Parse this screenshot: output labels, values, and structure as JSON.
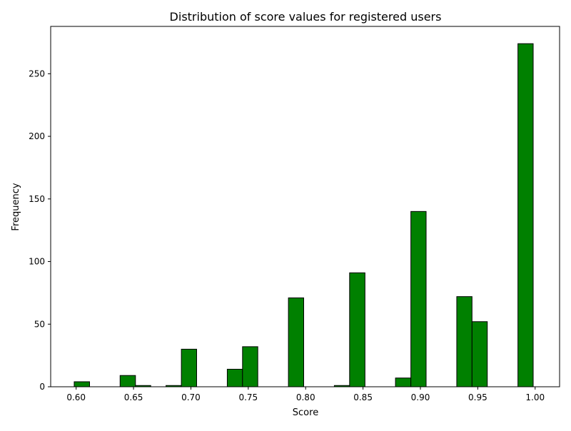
{
  "chart_data": {
    "type": "bar",
    "title": "Distribution of score values for registered users",
    "xlabel": "Score",
    "ylabel": "Frequency",
    "xlim": [
      0.5778,
      1.0213
    ],
    "ylim": [
      0,
      287.8
    ],
    "xticks": [
      0.6,
      0.65,
      0.7,
      0.75,
      0.8,
      0.85,
      0.9,
      0.95,
      1.0
    ],
    "xtick_labels": [
      "0.60",
      "0.65",
      "0.70",
      "0.75",
      "0.80",
      "0.85",
      "0.90",
      "0.95",
      "1.00"
    ],
    "yticks": [
      0,
      50,
      100,
      150,
      200,
      250
    ],
    "ytick_labels": [
      "0",
      "50",
      "100",
      "150",
      "200",
      "250"
    ],
    "bin_width": 0.01333,
    "bin_start": 0.5983,
    "bins": [
      {
        "left": 0.5983,
        "right": 0.6117,
        "count": 4
      },
      {
        "left": 0.6117,
        "right": 0.625,
        "count": 0
      },
      {
        "left": 0.625,
        "right": 0.6383,
        "count": 0
      },
      {
        "left": 0.6383,
        "right": 0.6517,
        "count": 9
      },
      {
        "left": 0.6517,
        "right": 0.665,
        "count": 1
      },
      {
        "left": 0.665,
        "right": 0.6783,
        "count": 0
      },
      {
        "left": 0.6783,
        "right": 0.6917,
        "count": 1
      },
      {
        "left": 0.6917,
        "right": 0.705,
        "count": 30
      },
      {
        "left": 0.705,
        "right": 0.7183,
        "count": 0
      },
      {
        "left": 0.7183,
        "right": 0.7317,
        "count": 0
      },
      {
        "left": 0.7317,
        "right": 0.745,
        "count": 14
      },
      {
        "left": 0.745,
        "right": 0.7583,
        "count": 32
      },
      {
        "left": 0.7583,
        "right": 0.7717,
        "count": 0
      },
      {
        "left": 0.7717,
        "right": 0.785,
        "count": 0
      },
      {
        "left": 0.785,
        "right": 0.7983,
        "count": 71
      },
      {
        "left": 0.7983,
        "right": 0.8117,
        "count": 0
      },
      {
        "left": 0.8117,
        "right": 0.825,
        "count": 0
      },
      {
        "left": 0.825,
        "right": 0.8383,
        "count": 1
      },
      {
        "left": 0.8383,
        "right": 0.8517,
        "count": 91
      },
      {
        "left": 0.8517,
        "right": 0.865,
        "count": 0
      },
      {
        "left": 0.865,
        "right": 0.8783,
        "count": 0
      },
      {
        "left": 0.8783,
        "right": 0.8917,
        "count": 7
      },
      {
        "left": 0.8917,
        "right": 0.905,
        "count": 140
      },
      {
        "left": 0.905,
        "right": 0.9183,
        "count": 0
      },
      {
        "left": 0.9183,
        "right": 0.9317,
        "count": 0
      },
      {
        "left": 0.9317,
        "right": 0.945,
        "count": 72
      },
      {
        "left": 0.945,
        "right": 0.9583,
        "count": 52
      },
      {
        "left": 0.9583,
        "right": 0.9717,
        "count": 0
      },
      {
        "left": 0.9717,
        "right": 0.985,
        "count": 0
      },
      {
        "left": 0.985,
        "right": 0.9983,
        "count": 274
      }
    ],
    "bar_color": "#008000",
    "edge_color": "#000000",
    "grid": false,
    "legend": "none"
  }
}
